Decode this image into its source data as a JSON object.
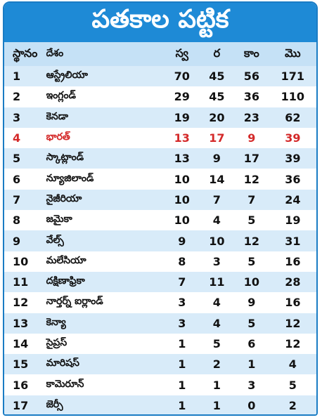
{
  "title": "పతకాల పట్టిక",
  "table": {
    "header": [
      "స్థానం",
      "దేశం",
      "స్వ",
      "ర",
      "కాం",
      "మొ"
    ],
    "rows": [
      [
        1,
        "ఆస్ట్రేలియా",
        70,
        45,
        56,
        171
      ],
      [
        2,
        "ఇంగ్లండ్",
        29,
        45,
        36,
        110
      ],
      [
        3,
        "కెనడా",
        19,
        20,
        23,
        62
      ],
      [
        4,
        "భారత్",
        13,
        17,
        9,
        39
      ],
      [
        5,
        "స్కాట్లాండ్",
        13,
        9,
        17,
        39
      ],
      [
        6,
        "న్యూజిలాండ్",
        10,
        14,
        12,
        36
      ],
      [
        7,
        "నైజీరియా",
        10,
        7,
        7,
        24
      ],
      [
        8,
        "జమైకా",
        10,
        4,
        5,
        19
      ],
      [
        9,
        "వేల్స్",
        9,
        10,
        12,
        31
      ],
      [
        10,
        "మలేసియా",
        8,
        3,
        5,
        16
      ],
      [
        11,
        "దక్షిణాఫ్రికా",
        7,
        11,
        10,
        28
      ],
      [
        12,
        "నార్తర్న్ ఐర్లాండ్",
        3,
        4,
        9,
        16
      ],
      [
        13,
        "కెన్యా",
        3,
        4,
        5,
        12
      ],
      [
        14,
        "సైప్రస్",
        1,
        5,
        6,
        12
      ],
      [
        15,
        "మారిషస్",
        1,
        2,
        1,
        4
      ],
      [
        16,
        "కామెరూన్",
        1,
        1,
        3,
        5
      ],
      [
        17,
        "జెర్సీ",
        1,
        1,
        0,
        2
      ]
    ],
    "highlight_row": 3,
    "highlight_color": "#d42a2a"
  }
}
